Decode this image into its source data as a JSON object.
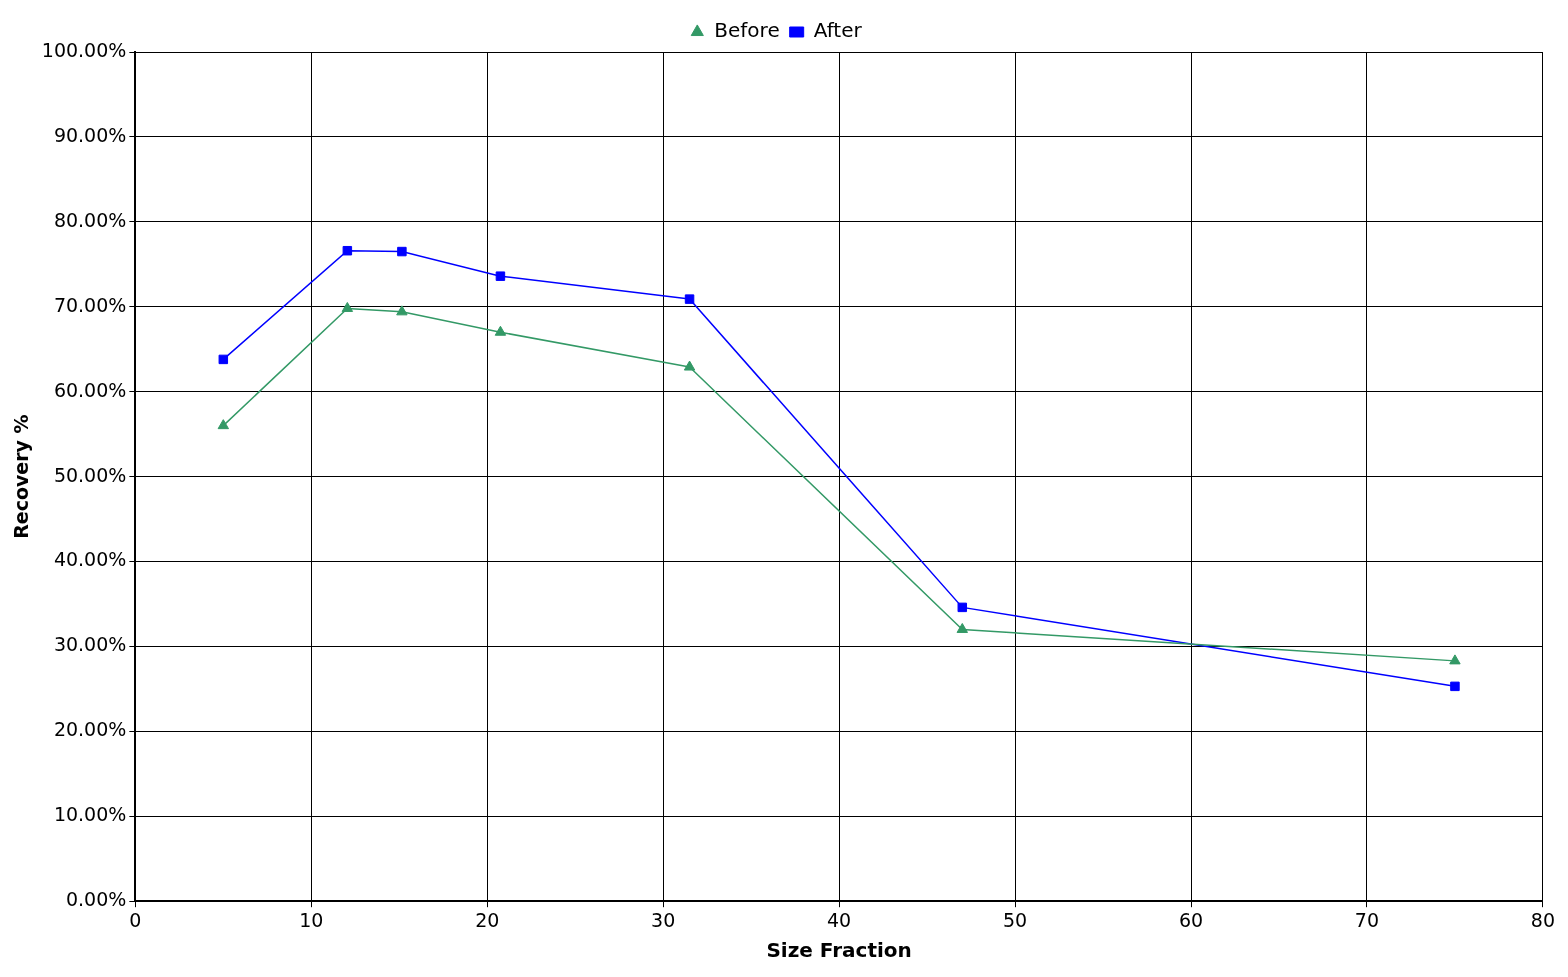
{
  "chart_data": {
    "type": "line",
    "xlabel": "Size Fraction",
    "ylabel": "Recovery %",
    "x": [
      5.0,
      12.05,
      15.15,
      20.75,
      31.5,
      47.0,
      75.0
    ],
    "series": [
      {
        "name": "Before",
        "color": "#339966",
        "marker": "triangle",
        "values": [
          56.0,
          69.8,
          69.4,
          67.0,
          62.9,
          32.0,
          28.3
        ]
      },
      {
        "name": "After",
        "color": "#0000ff",
        "marker": "square",
        "values": [
          63.8,
          76.6,
          76.5,
          73.6,
          70.9,
          34.6,
          25.3
        ]
      }
    ],
    "xlim": [
      0,
      80
    ],
    "xticks": [
      0,
      10,
      20,
      30,
      40,
      50,
      60,
      70,
      80
    ],
    "ylim": [
      0,
      100
    ],
    "yticks": [
      {
        "value": 0,
        "label": "0.00%"
      },
      {
        "value": 10,
        "label": "10.00%"
      },
      {
        "value": 20,
        "label": "20.00%"
      },
      {
        "value": 30,
        "label": "30.00%"
      },
      {
        "value": 40,
        "label": "40.00%"
      },
      {
        "value": 50,
        "label": "50.00%"
      },
      {
        "value": 60,
        "label": "60.00%"
      },
      {
        "value": 70,
        "label": "70.00%"
      },
      {
        "value": 80,
        "label": "80.00%"
      },
      {
        "value": 90,
        "label": "90.00%"
      },
      {
        "value": 100,
        "label": "100.00%"
      }
    ],
    "grid": true,
    "legend": "top",
    "line_style": "solid"
  }
}
